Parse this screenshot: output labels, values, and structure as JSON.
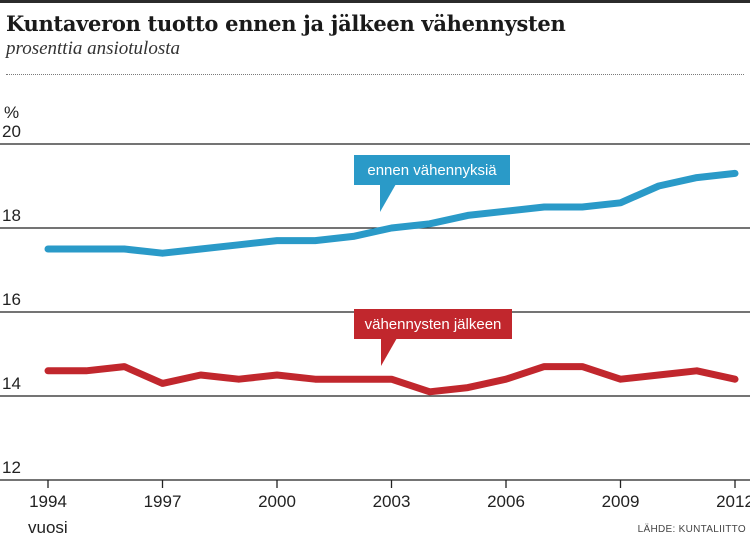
{
  "title": "Kuntaveron tuotto ennen ja jälkeen vähennysten",
  "subtitle": "prosenttia ansiotulosta",
  "source": "LÄHDE: KUNTALIITTO",
  "colors": {
    "series_before": "#2a9ac8",
    "series_after": "#c1272d",
    "grid": "#222222"
  },
  "chart_data": {
    "type": "line",
    "title": "Kuntaveron tuotto ennen ja jälkeen vähennysten",
    "subtitle": "prosenttia ansiotulosta",
    "xlabel": "vuosi",
    "ylabel": "%",
    "xlim": [
      1994,
      2012
    ],
    "ylim": [
      12,
      20
    ],
    "x_ticks": [
      1994,
      1997,
      2000,
      2003,
      2006,
      2009,
      2012
    ],
    "y_ticks": [
      12,
      14,
      16,
      18,
      20
    ],
    "grid": "horizontal",
    "x": [
      1994,
      1995,
      1996,
      1997,
      1998,
      1999,
      2000,
      2001,
      2002,
      2003,
      2004,
      2005,
      2006,
      2007,
      2008,
      2009,
      2010,
      2011,
      2012
    ],
    "series": [
      {
        "name": "ennen vähennyksiä",
        "color": "#2a9ac8",
        "values": [
          17.5,
          17.5,
          17.5,
          17.4,
          17.5,
          17.6,
          17.7,
          17.7,
          17.8,
          18.0,
          18.1,
          18.3,
          18.4,
          18.5,
          18.5,
          18.6,
          19.0,
          19.2,
          19.3
        ]
      },
      {
        "name": "vähennysten jälkeen",
        "color": "#c1272d",
        "values": [
          14.6,
          14.6,
          14.7,
          14.3,
          14.5,
          14.4,
          14.5,
          14.4,
          14.4,
          14.4,
          14.1,
          14.2,
          14.4,
          14.7,
          14.7,
          14.4,
          14.5,
          14.6,
          14.4
        ]
      }
    ]
  }
}
